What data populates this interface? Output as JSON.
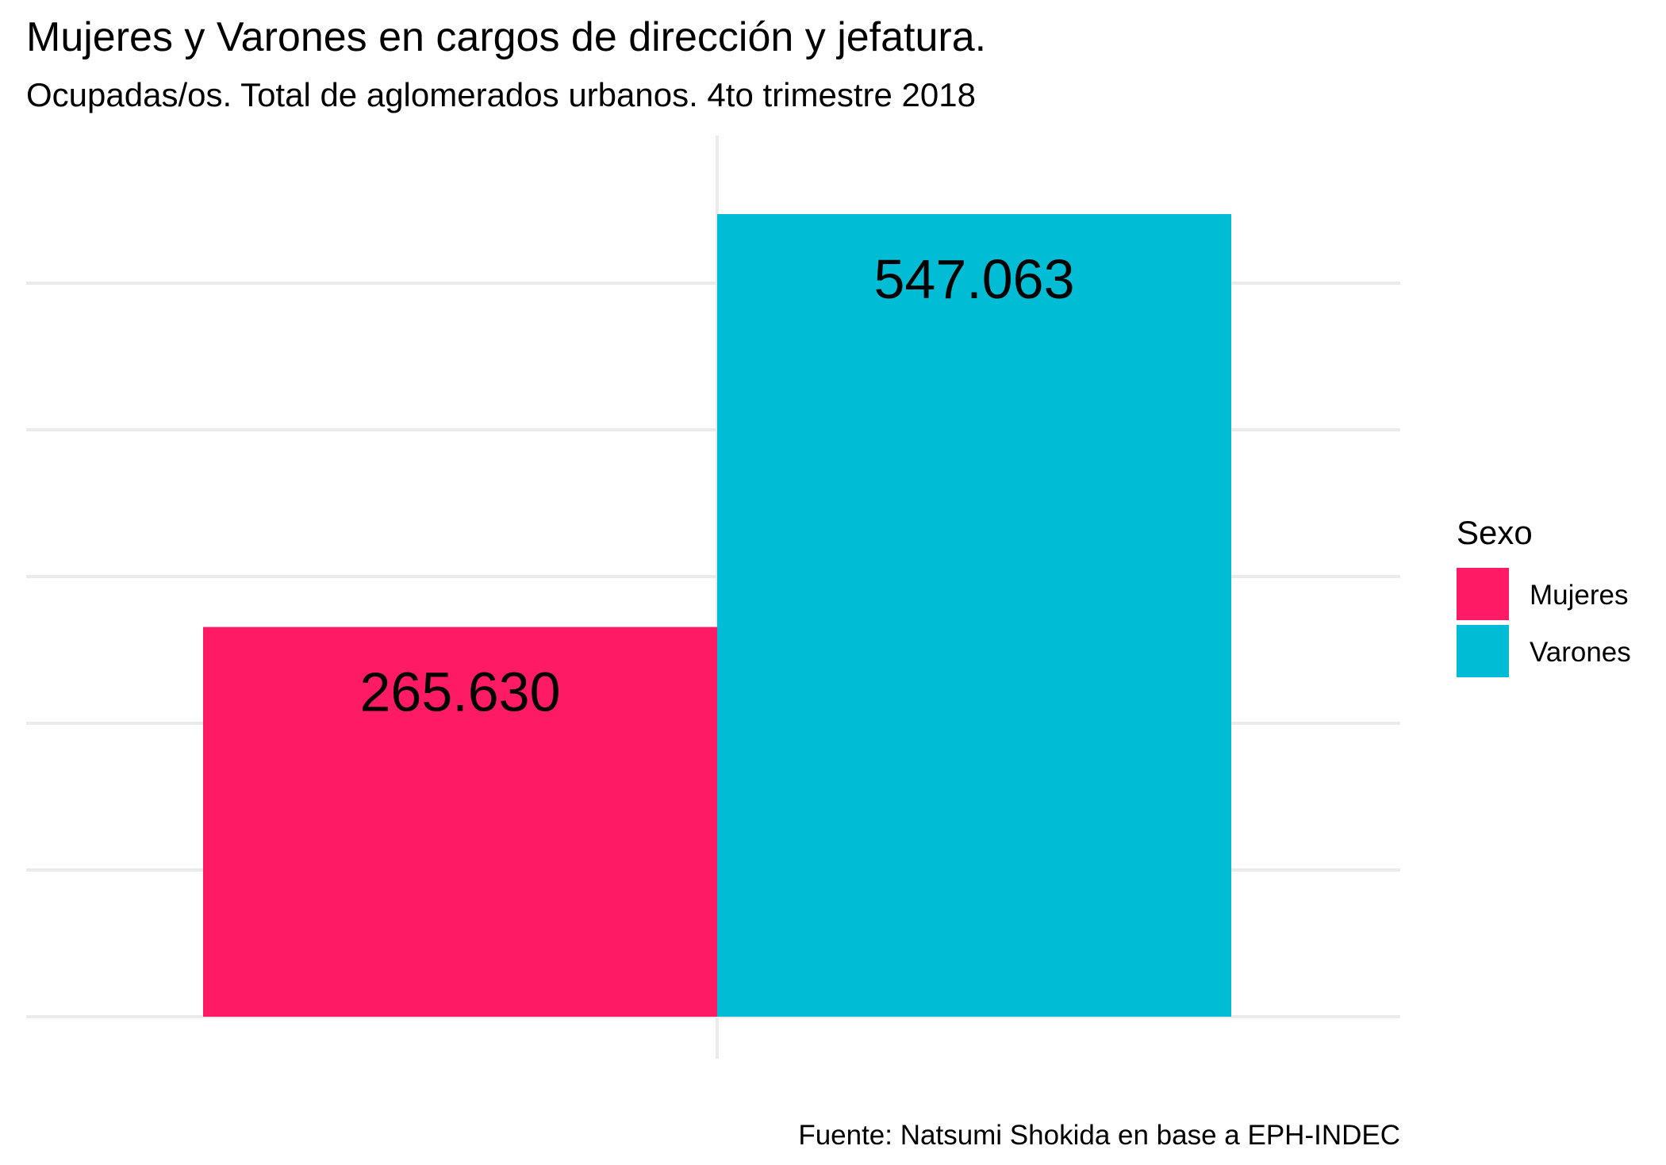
{
  "chart_data": {
    "type": "bar",
    "title": "Mujeres y Varones en cargos de dirección y jefatura.",
    "subtitle": "Ocupadas/os. Total de aglomerados urbanos. 4to trimestre 2018",
    "caption": "Fuente: Natsumi Shokida en base a EPH-INDEC",
    "categories": [
      "Mujeres",
      "Varones"
    ],
    "values": [
      265630,
      547063
    ],
    "value_labels": [
      "265.630",
      "547.063"
    ],
    "colors": [
      "#ff1a66",
      "#00bcd4"
    ],
    "ylim": [
      0,
      573000
    ],
    "grid_values": [
      0,
      100000,
      200000,
      300000,
      400000,
      500000
    ],
    "legend": {
      "title": "Sexo",
      "placement": "right",
      "entries": [
        {
          "label": "Mujeres",
          "color": "#ff1a66"
        },
        {
          "label": "Varones",
          "color": "#00bcd4"
        }
      ]
    },
    "axis_text_shown": false,
    "grid": true
  }
}
